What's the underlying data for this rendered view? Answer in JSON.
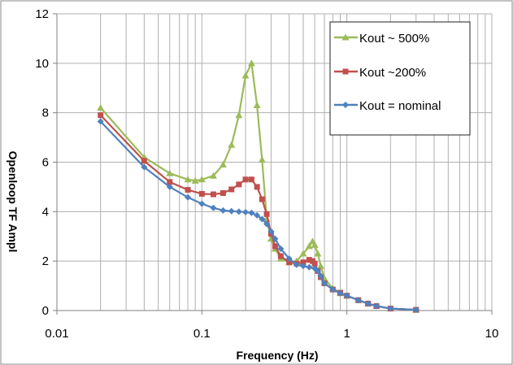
{
  "chart_data": {
    "type": "line",
    "xscale": "log",
    "xlim": [
      0.01,
      10
    ],
    "ylim": [
      0,
      12
    ],
    "xticks": [
      "0.01",
      "0.1",
      "1",
      "10"
    ],
    "yticks": [
      "0",
      "2",
      "4",
      "6",
      "8",
      "10",
      "12"
    ],
    "xlabel": "Frequency (Hz)",
    "ylabel": "Openloop TF Ampl",
    "grid": true,
    "legend_position": "top-right",
    "series": [
      {
        "name": "Kout ~ 500%",
        "color": "#9bbb59",
        "marker": "triangle",
        "x": [
          0.02,
          0.04,
          0.06,
          0.08,
          0.09,
          0.1,
          0.12,
          0.14,
          0.16,
          0.18,
          0.2,
          0.22,
          0.24,
          0.26,
          0.28,
          0.3,
          0.32,
          0.35,
          0.4,
          0.45,
          0.5,
          0.55,
          0.58,
          0.6,
          0.63,
          0.66,
          0.7,
          0.8,
          0.9,
          1.0,
          1.2,
          1.4,
          1.6,
          2.0,
          3.0
        ],
        "y": [
          8.2,
          6.2,
          5.55,
          5.3,
          5.25,
          5.3,
          5.45,
          5.9,
          6.7,
          7.9,
          9.5,
          10.0,
          8.3,
          6.1,
          3.7,
          2.9,
          2.5,
          2.1,
          1.95,
          2.0,
          2.3,
          2.6,
          2.8,
          2.65,
          2.3,
          1.8,
          1.3,
          0.9,
          0.7,
          0.6,
          0.42,
          0.28,
          0.18,
          0.08,
          0.03
        ]
      },
      {
        "name": "Kout ~200%",
        "color": "#c0504d",
        "marker": "square",
        "x": [
          0.02,
          0.04,
          0.06,
          0.08,
          0.1,
          0.12,
          0.14,
          0.16,
          0.18,
          0.2,
          0.22,
          0.24,
          0.26,
          0.28,
          0.3,
          0.32,
          0.35,
          0.4,
          0.45,
          0.5,
          0.55,
          0.58,
          0.6,
          0.63,
          0.66,
          0.7,
          0.8,
          0.9,
          1.0,
          1.2,
          1.4,
          1.6,
          2.0,
          3.0
        ],
        "y": [
          7.9,
          6.05,
          5.2,
          4.88,
          4.72,
          4.7,
          4.75,
          4.9,
          5.1,
          5.3,
          5.3,
          5.0,
          4.5,
          3.9,
          3.1,
          2.6,
          2.2,
          1.95,
          1.9,
          1.95,
          2.05,
          2.0,
          1.9,
          1.6,
          1.35,
          1.1,
          0.85,
          0.72,
          0.6,
          0.42,
          0.28,
          0.18,
          0.08,
          0.03
        ]
      },
      {
        "name": "Kout = nominal",
        "color": "#4f81bd",
        "marker": "diamond",
        "x": [
          0.02,
          0.04,
          0.06,
          0.08,
          0.1,
          0.12,
          0.14,
          0.16,
          0.18,
          0.2,
          0.22,
          0.24,
          0.26,
          0.28,
          0.3,
          0.32,
          0.35,
          0.4,
          0.45,
          0.5,
          0.55,
          0.6,
          0.63,
          0.66,
          0.7,
          0.8,
          0.9,
          1.0,
          1.2,
          1.4,
          1.6,
          2.0,
          3.0
        ],
        "y": [
          7.65,
          5.8,
          5.0,
          4.58,
          4.32,
          4.15,
          4.05,
          4.02,
          4.0,
          3.98,
          3.95,
          3.85,
          3.7,
          3.5,
          3.2,
          2.9,
          2.5,
          2.1,
          1.85,
          1.8,
          1.75,
          1.7,
          1.6,
          1.4,
          1.1,
          0.85,
          0.7,
          0.6,
          0.42,
          0.28,
          0.18,
          0.08,
          0.03
        ]
      }
    ]
  }
}
